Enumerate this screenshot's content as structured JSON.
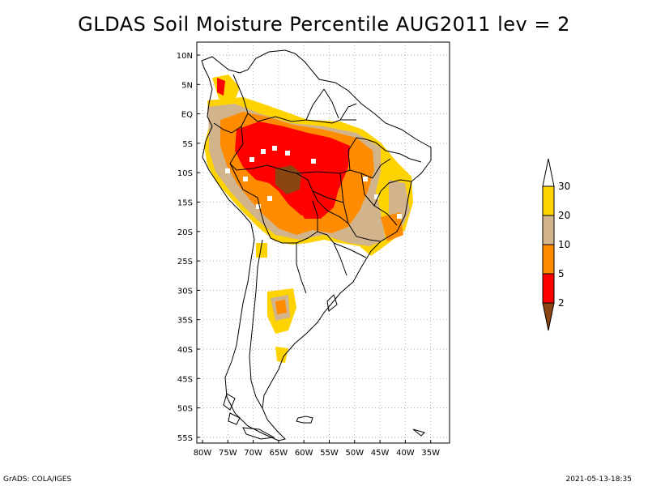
{
  "title": "GLDAS Soil Moisture Percentile AUG2011 lev = 2",
  "footer_left": "GrADS: COLA/IGES",
  "footer_right": "2021-05-13-18:35",
  "lat_labels": [
    "10N",
    "5N",
    "EQ",
    "5S",
    "10S",
    "15S",
    "20S",
    "25S",
    "30S",
    "35S",
    "40S",
    "45S",
    "50S",
    "55S"
  ],
  "lon_labels": [
    "80W",
    "75W",
    "70W",
    "65W",
    "60W",
    "55W",
    "50W",
    "45W",
    "40W",
    "35W"
  ],
  "colorbar": {
    "labels": [
      "30",
      "20",
      "10",
      "5",
      "2"
    ],
    "colors": {
      "above30": "#ffffff",
      "20-30": "#ffd300",
      "10-20": "#d2b48c",
      "5-10": "#ff8c00",
      "2-5": "#ff0000",
      "below2": "#8b4513"
    }
  },
  "map_colors": {
    "yellow": "#ffd300",
    "tan": "#d2b48c",
    "orange": "#ff8c00",
    "red": "#ff0000",
    "brown": "#8b4513"
  }
}
